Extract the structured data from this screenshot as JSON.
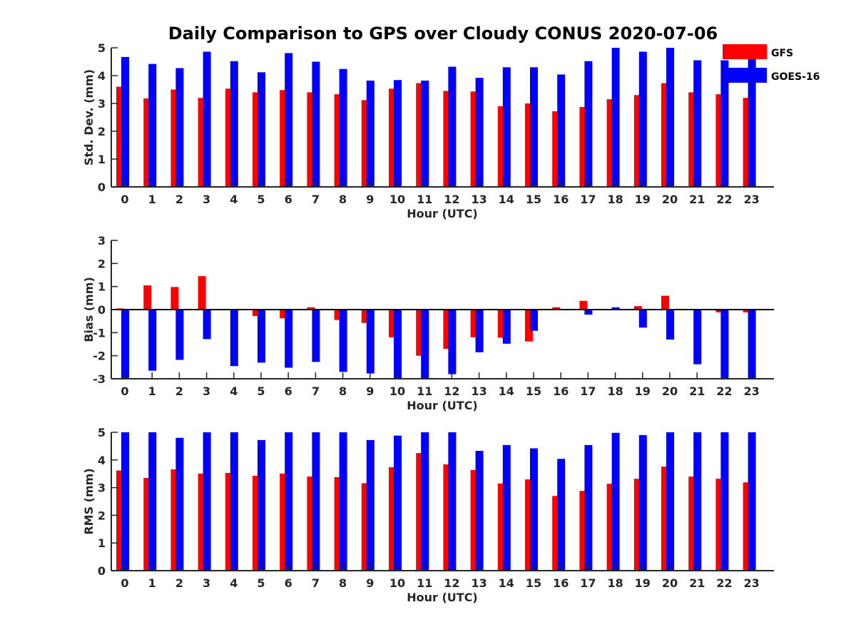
{
  "title": "Daily Comparison to GPS over Cloudy CONUS 2020-07-06",
  "colors": {
    "GFS": "#ff0000",
    "GOES-16": "#0000ff",
    "axis": "#262626"
  },
  "legend": [
    "GFS",
    "GOES-16"
  ],
  "chart_data": [
    {
      "type": "bar",
      "xlabel": "Hour (UTC)",
      "ylabel": "Std. Dev. (mm)",
      "ylim": [
        0,
        5
      ],
      "yticks": [
        0,
        1,
        2,
        3,
        4,
        5
      ],
      "categories": [
        "0",
        "1",
        "2",
        "3",
        "4",
        "5",
        "6",
        "7",
        "8",
        "9",
        "10",
        "11",
        "12",
        "13",
        "14",
        "15",
        "16",
        "17",
        "18",
        "19",
        "20",
        "21",
        "22",
        "23"
      ],
      "series": [
        {
          "name": "GFS",
          "values": [
            3.6,
            3.18,
            3.5,
            3.2,
            3.53,
            3.4,
            3.48,
            3.4,
            3.33,
            3.12,
            3.53,
            3.73,
            3.45,
            3.43,
            2.9,
            3.0,
            2.72,
            2.87,
            3.15,
            3.3,
            3.73,
            3.4,
            3.33,
            3.2
          ]
        },
        {
          "name": "GOES-16",
          "values": [
            4.67,
            4.42,
            4.27,
            4.86,
            4.52,
            4.12,
            4.81,
            4.5,
            4.24,
            3.82,
            3.84,
            3.82,
            4.32,
            3.92,
            4.3,
            4.3,
            4.04,
            4.52,
            5.0,
            4.86,
            5.0,
            4.55,
            4.55,
            4.6
          ]
        }
      ]
    },
    {
      "type": "bar",
      "xlabel": "Hour (UTC)",
      "ylabel": "Bias (mm)",
      "ylim": [
        -3,
        3
      ],
      "yticks": [
        -3,
        -2,
        -1,
        0,
        1,
        2,
        3
      ],
      "categories": [
        "0",
        "1",
        "2",
        "3",
        "4",
        "5",
        "6",
        "7",
        "8",
        "9",
        "10",
        "11",
        "12",
        "13",
        "14",
        "15",
        "16",
        "17",
        "18",
        "19",
        "20",
        "21",
        "22",
        "23"
      ],
      "series": [
        {
          "name": "GFS",
          "values": [
            0.05,
            1.05,
            0.98,
            1.45,
            0.0,
            -0.28,
            -0.38,
            0.1,
            -0.45,
            -0.58,
            -1.2,
            -2.0,
            -1.7,
            -1.2,
            -1.22,
            -1.38,
            0.1,
            0.38,
            0.02,
            0.15,
            0.6,
            0.0,
            -0.12,
            -0.12
          ]
        },
        {
          "name": "GOES-16",
          "values": [
            -3.0,
            -2.65,
            -2.18,
            -1.28,
            -2.45,
            -2.3,
            -2.52,
            -2.27,
            -2.7,
            -2.77,
            -3.0,
            -3.0,
            -2.8,
            -1.85,
            -1.48,
            -0.92,
            0.0,
            -0.22,
            0.1,
            -0.78,
            -1.3,
            -2.37,
            -3.0,
            -3.0
          ]
        }
      ]
    },
    {
      "type": "bar",
      "xlabel": "Hour (UTC)",
      "ylabel": "RMS (mm)",
      "ylim": [
        0,
        5
      ],
      "yticks": [
        0,
        1,
        2,
        3,
        4,
        5
      ],
      "categories": [
        "0",
        "1",
        "2",
        "3",
        "4",
        "5",
        "6",
        "7",
        "8",
        "9",
        "10",
        "11",
        "12",
        "13",
        "14",
        "15",
        "16",
        "17",
        "18",
        "19",
        "20",
        "21",
        "22",
        "23"
      ],
      "series": [
        {
          "name": "GFS",
          "values": [
            3.62,
            3.35,
            3.66,
            3.51,
            3.53,
            3.43,
            3.51,
            3.4,
            3.38,
            3.16,
            3.74,
            4.25,
            3.84,
            3.64,
            3.15,
            3.3,
            2.7,
            2.88,
            3.14,
            3.32,
            3.76,
            3.4,
            3.32,
            3.19
          ]
        },
        {
          "name": "GOES-16",
          "values": [
            5.0,
            5.0,
            4.8,
            5.0,
            5.0,
            4.72,
            5.0,
            5.0,
            5.0,
            4.72,
            4.88,
            5.0,
            5.0,
            4.33,
            4.54,
            4.42,
            4.04,
            4.54,
            4.98,
            4.9,
            5.0,
            5.0,
            5.0,
            5.0
          ]
        }
      ]
    }
  ]
}
